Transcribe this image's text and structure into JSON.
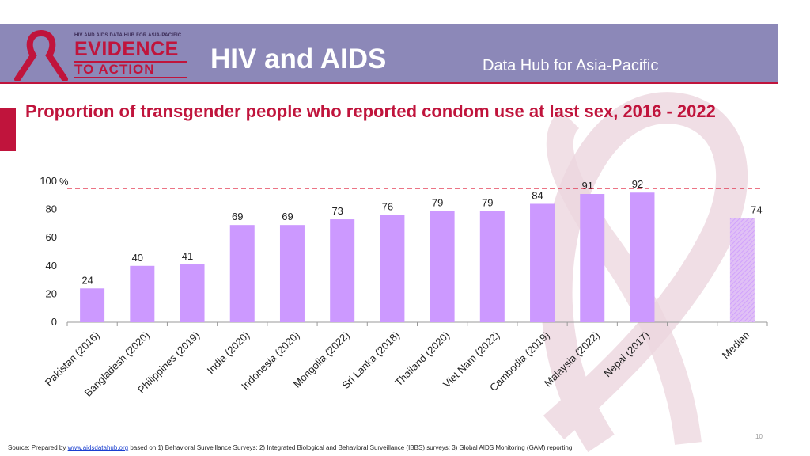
{
  "header": {
    "logo_small_text": "HIV AND AIDS DATA HUB FOR ASIA-PACIFIC",
    "logo_evidence": "EVIDENCE",
    "logo_action": "TO ACTION",
    "title": "HIV and AIDS",
    "subtitle": "Data Hub for Asia-Pacific"
  },
  "colors": {
    "header_bg": "#8c88b8",
    "accent": "#c0143c",
    "bar": "#cc99ff",
    "median_bar": "#e0c0f5",
    "reference_line": "#e0203c"
  },
  "page_title": "Proportion of transgender people who reported condom use at last sex, 2016 - 2022",
  "chart_data": {
    "type": "bar",
    "categories": [
      "Pakistan (2016)",
      "Bangladesh (2020)",
      "Philippines (2019)",
      "India (2020)",
      "Indonesia (2020)",
      "Mongolia (2022)",
      "Sri Lanka (2018)",
      "Thailand (2020)",
      "Viet Nam (2022)",
      "Cambodia (2019)",
      "Malaysia (2022)",
      "Nepal (2017)",
      "",
      "Median"
    ],
    "values": [
      24,
      40,
      41,
      69,
      69,
      73,
      76,
      79,
      79,
      84,
      91,
      92,
      null,
      74
    ],
    "data_labels": [
      "24",
      "40",
      "41",
      "69",
      "69",
      "73",
      "76",
      "79",
      "79",
      "84",
      "91",
      "92",
      "",
      "74"
    ],
    "y_ticks": [
      "0",
      "20",
      "40",
      "60",
      "80",
      "100"
    ],
    "y_unit": "%",
    "ylim": [
      0,
      100
    ],
    "reference_line": 95,
    "title": "",
    "xlabel": "",
    "ylabel": ""
  },
  "footer": {
    "source_prefix": "Source: Prepared by ",
    "link": "www.aidsdatahub.org",
    "source_suffix": " based on 1) Behavioral Surveillance Surveys; 2) Integrated Biological and Behavioral Surveillance (IBBS) surveys; 3) Global AIDS Monitoring (GAM) reporting"
  },
  "page_number": "10"
}
